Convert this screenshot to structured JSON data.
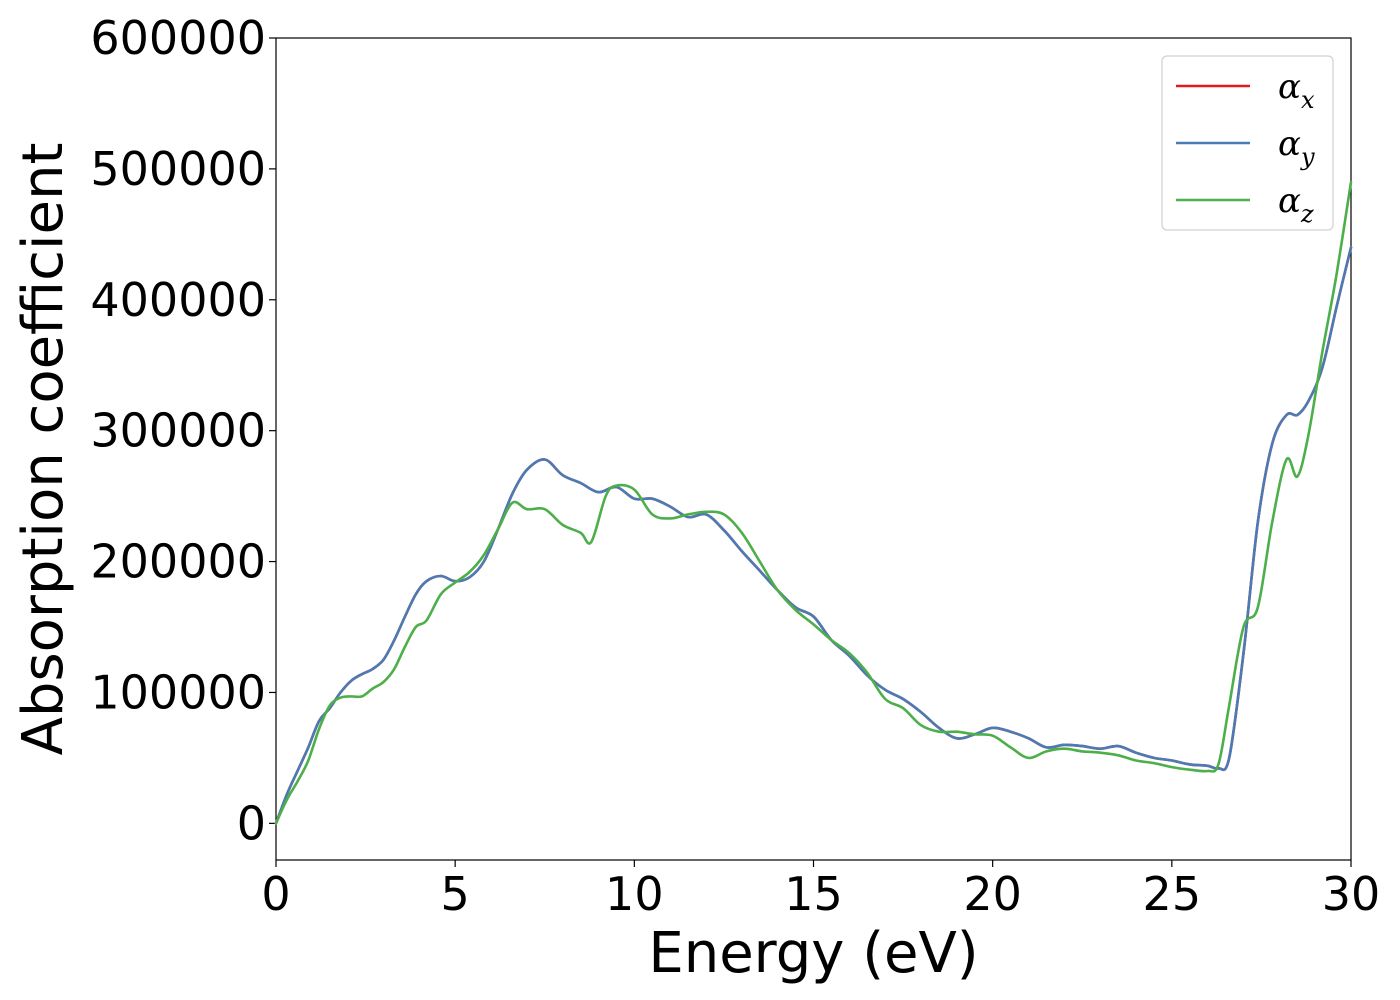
{
  "chart_data": {
    "type": "line",
    "xlabel": "Energy (eV)",
    "ylabel": "Absorption coefficient",
    "xlim": [
      0,
      30
    ],
    "ylim": [
      -28000,
      600000
    ],
    "xticks": [
      0,
      5,
      10,
      15,
      20,
      25,
      30
    ],
    "yticks": [
      0,
      100000,
      200000,
      300000,
      400000,
      500000,
      600000
    ],
    "grid": false,
    "legend_position": "top-right",
    "series": [
      {
        "name": "α_x",
        "label_main": "α",
        "label_sub": "x",
        "color": "#e41a1c",
        "x": [
          0,
          0.3,
          0.6,
          0.9,
          1.2,
          1.5,
          1.8,
          2.1,
          2.4,
          2.7,
          3.0,
          3.3,
          3.6,
          3.9,
          4.2,
          4.6,
          5.0,
          5.4,
          5.8,
          6.2,
          6.6,
          7.0,
          7.5,
          8.0,
          8.5,
          9.0,
          9.5,
          10.0,
          10.5,
          11.0,
          11.5,
          12.0,
          12.5,
          13.0,
          13.5,
          14.0,
          14.5,
          15.0,
          15.5,
          16.0,
          16.5,
          17.0,
          17.5,
          18.0,
          18.5,
          19.0,
          19.5,
          20.0,
          20.5,
          21.0,
          21.5,
          22.0,
          22.5,
          23.0,
          23.5,
          24.0,
          24.5,
          25.0,
          25.5,
          26.0,
          26.3,
          26.6,
          27.0,
          27.4,
          27.8,
          28.2,
          28.5,
          28.8,
          29.2,
          29.6,
          30.0
        ],
        "values": [
          0,
          22000,
          40000,
          58000,
          78000,
          88000,
          100000,
          109000,
          114000,
          118000,
          125000,
          140000,
          158000,
          175000,
          185000,
          189000,
          185000,
          188000,
          200000,
          225000,
          252000,
          270000,
          278000,
          266000,
          260000,
          253000,
          257000,
          248000,
          248000,
          242000,
          234000,
          236000,
          224000,
          208000,
          193000,
          178000,
          165000,
          158000,
          140000,
          128000,
          113000,
          102000,
          95000,
          85000,
          73000,
          65000,
          68000,
          73000,
          70000,
          65000,
          58000,
          60000,
          59000,
          57000,
          59000,
          54000,
          50000,
          48000,
          45000,
          44000,
          42000,
          50000,
          130000,
          230000,
          290000,
          312000,
          312000,
          322000,
          348000,
          395000,
          440000
        ]
      },
      {
        "name": "α_y",
        "label_main": "α",
        "label_sub": "y",
        "color": "#4a7bb5",
        "x": [
          0,
          0.3,
          0.6,
          0.9,
          1.2,
          1.5,
          1.8,
          2.1,
          2.4,
          2.7,
          3.0,
          3.3,
          3.6,
          3.9,
          4.2,
          4.6,
          5.0,
          5.4,
          5.8,
          6.2,
          6.6,
          7.0,
          7.5,
          8.0,
          8.5,
          9.0,
          9.5,
          10.0,
          10.5,
          11.0,
          11.5,
          12.0,
          12.5,
          13.0,
          13.5,
          14.0,
          14.5,
          15.0,
          15.5,
          16.0,
          16.5,
          17.0,
          17.5,
          18.0,
          18.5,
          19.0,
          19.5,
          20.0,
          20.5,
          21.0,
          21.5,
          22.0,
          22.5,
          23.0,
          23.5,
          24.0,
          24.5,
          25.0,
          25.5,
          26.0,
          26.3,
          26.6,
          27.0,
          27.4,
          27.8,
          28.2,
          28.5,
          28.8,
          29.2,
          29.6,
          30.0
        ],
        "values": [
          0,
          22000,
          40000,
          58000,
          78000,
          88000,
          100000,
          109000,
          114000,
          118000,
          125000,
          140000,
          158000,
          175000,
          185000,
          189000,
          185000,
          188000,
          200000,
          225000,
          252000,
          270000,
          278000,
          266000,
          260000,
          253000,
          257000,
          248000,
          248000,
          242000,
          234000,
          236000,
          224000,
          208000,
          193000,
          178000,
          165000,
          158000,
          140000,
          128000,
          113000,
          102000,
          95000,
          85000,
          73000,
          65000,
          68000,
          73000,
          70000,
          65000,
          58000,
          60000,
          59000,
          57000,
          59000,
          54000,
          50000,
          48000,
          45000,
          44000,
          42000,
          50000,
          130000,
          230000,
          290000,
          312000,
          312000,
          322000,
          348000,
          395000,
          440000
        ]
      },
      {
        "name": "α_z",
        "label_main": "α",
        "label_sub": "z",
        "color": "#4daf4a",
        "x": [
          0,
          0.3,
          0.6,
          0.9,
          1.2,
          1.5,
          1.8,
          2.1,
          2.4,
          2.7,
          3.0,
          3.3,
          3.6,
          3.9,
          4.2,
          4.6,
          5.0,
          5.4,
          5.8,
          6.2,
          6.6,
          7.0,
          7.5,
          8.0,
          8.5,
          8.8,
          9.2,
          9.5,
          10.0,
          10.5,
          11.0,
          11.5,
          12.0,
          12.5,
          13.0,
          13.5,
          14.0,
          14.5,
          15.0,
          15.5,
          16.0,
          16.5,
          17.0,
          17.5,
          18.0,
          18.5,
          19.0,
          19.5,
          20.0,
          20.5,
          21.0,
          21.5,
          22.0,
          22.5,
          23.0,
          23.5,
          24.0,
          24.5,
          25.0,
          25.5,
          26.0,
          26.3,
          26.6,
          27.0,
          27.4,
          27.8,
          28.2,
          28.5,
          28.8,
          29.2,
          29.6,
          30.0
        ],
        "values": [
          0,
          18000,
          32000,
          48000,
          72000,
          90000,
          96000,
          97000,
          97000,
          103000,
          108000,
          118000,
          135000,
          150000,
          155000,
          175000,
          184000,
          192000,
          205000,
          225000,
          245000,
          240000,
          240000,
          228000,
          222000,
          215000,
          250000,
          258000,
          255000,
          236000,
          233000,
          236000,
          238000,
          236000,
          222000,
          200000,
          178000,
          163000,
          152000,
          140000,
          130000,
          115000,
          95000,
          88000,
          75000,
          70000,
          70000,
          68000,
          67000,
          58000,
          50000,
          55000,
          57000,
          55000,
          54000,
          52000,
          48000,
          46000,
          43000,
          41000,
          40000,
          45000,
          90000,
          150000,
          165000,
          230000,
          278000,
          265000,
          295000,
          360000,
          420000,
          490000
        ]
      }
    ]
  }
}
